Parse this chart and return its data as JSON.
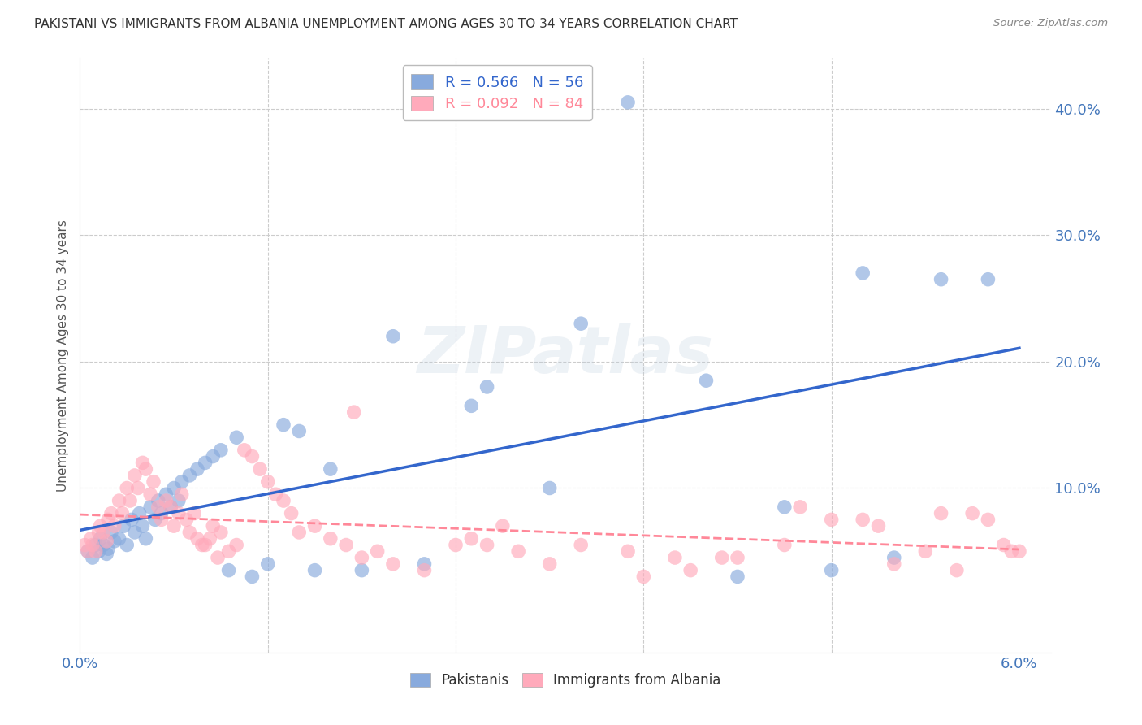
{
  "title": "PAKISTANI VS IMMIGRANTS FROM ALBANIA UNEMPLOYMENT AMONG AGES 30 TO 34 YEARS CORRELATION CHART",
  "source": "Source: ZipAtlas.com",
  "ylabel": "Unemployment Among Ages 30 to 34 years",
  "xlim": [
    0.0,
    6.2
  ],
  "ylim": [
    -3.0,
    44.0
  ],
  "yticks": [
    0.0,
    10.0,
    20.0,
    30.0,
    40.0
  ],
  "ytick_labels": [
    "",
    "10.0%",
    "20.0%",
    "30.0%",
    "40.0%"
  ],
  "legend_blue_r": "R = 0.566",
  "legend_blue_n": "N = 56",
  "legend_pink_r": "R = 0.092",
  "legend_pink_n": "N = 84",
  "blue_color": "#88AADD",
  "pink_color": "#FFAABB",
  "blue_line_color": "#3366CC",
  "pink_line_color": "#FF8899",
  "watermark": "ZIPatlas",
  "title_color": "#333333",
  "axis_color": "#4477BB",
  "pakistani_x": [
    0.05,
    0.08,
    0.1,
    0.12,
    0.13,
    0.15,
    0.17,
    0.18,
    0.2,
    0.22,
    0.25,
    0.28,
    0.3,
    0.33,
    0.35,
    0.38,
    0.4,
    0.42,
    0.45,
    0.48,
    0.5,
    0.52,
    0.55,
    0.58,
    0.6,
    0.63,
    0.65,
    0.7,
    0.75,
    0.8,
    0.85,
    0.9,
    0.95,
    1.0,
    1.1,
    1.2,
    1.3,
    1.4,
    1.5,
    1.6,
    1.8,
    2.0,
    2.2,
    2.5,
    2.6,
    3.0,
    3.2,
    3.5,
    4.0,
    4.2,
    4.5,
    4.8,
    5.0,
    5.2,
    5.5,
    5.8
  ],
  "pakistani_y": [
    5.0,
    4.5,
    5.5,
    5.0,
    6.0,
    5.5,
    4.8,
    5.2,
    6.5,
    5.8,
    6.0,
    7.0,
    5.5,
    7.5,
    6.5,
    8.0,
    7.0,
    6.0,
    8.5,
    7.5,
    9.0,
    8.0,
    9.5,
    8.5,
    10.0,
    9.0,
    10.5,
    11.0,
    11.5,
    12.0,
    12.5,
    13.0,
    3.5,
    14.0,
    3.0,
    4.0,
    15.0,
    14.5,
    3.5,
    11.5,
    3.5,
    22.0,
    4.0,
    16.5,
    18.0,
    10.0,
    23.0,
    40.5,
    18.5,
    3.0,
    8.5,
    3.5,
    27.0,
    4.5,
    26.5,
    26.5
  ],
  "albania_x": [
    0.03,
    0.05,
    0.07,
    0.08,
    0.1,
    0.12,
    0.13,
    0.15,
    0.17,
    0.18,
    0.2,
    0.22,
    0.25,
    0.27,
    0.3,
    0.32,
    0.35,
    0.37,
    0.4,
    0.42,
    0.45,
    0.47,
    0.5,
    0.52,
    0.55,
    0.58,
    0.6,
    0.63,
    0.65,
    0.68,
    0.7,
    0.73,
    0.75,
    0.8,
    0.85,
    0.9,
    0.95,
    1.0,
    1.05,
    1.1,
    1.15,
    1.2,
    1.25,
    1.3,
    1.35,
    1.4,
    1.5,
    1.6,
    1.7,
    1.8,
    1.9,
    2.0,
    2.2,
    2.4,
    2.5,
    2.7,
    2.8,
    3.0,
    3.2,
    3.5,
    3.8,
    4.2,
    4.5,
    4.8,
    5.0,
    5.2,
    5.5,
    5.7,
    5.8,
    5.9,
    6.0,
    3.6,
    4.1,
    2.6,
    3.9,
    4.6,
    5.1,
    5.4,
    5.6,
    5.95,
    1.75,
    0.78,
    0.83,
    0.88
  ],
  "albania_y": [
    5.5,
    5.0,
    6.0,
    5.5,
    5.0,
    6.5,
    7.0,
    6.5,
    5.8,
    7.5,
    8.0,
    7.0,
    9.0,
    8.0,
    10.0,
    9.0,
    11.0,
    10.0,
    12.0,
    11.5,
    9.5,
    10.5,
    8.5,
    7.5,
    9.0,
    8.5,
    7.0,
    8.0,
    9.5,
    7.5,
    6.5,
    8.0,
    6.0,
    5.5,
    7.0,
    6.5,
    5.0,
    5.5,
    13.0,
    12.5,
    11.5,
    10.5,
    9.5,
    9.0,
    8.0,
    6.5,
    7.0,
    6.0,
    5.5,
    4.5,
    5.0,
    4.0,
    3.5,
    5.5,
    6.0,
    7.0,
    5.0,
    4.0,
    5.5,
    5.0,
    4.5,
    4.5,
    5.5,
    7.5,
    7.5,
    4.0,
    8.0,
    8.0,
    7.5,
    5.5,
    5.0,
    3.0,
    4.5,
    5.5,
    3.5,
    8.5,
    7.0,
    5.0,
    3.5,
    5.0,
    16.0,
    5.5,
    6.0,
    4.5
  ]
}
